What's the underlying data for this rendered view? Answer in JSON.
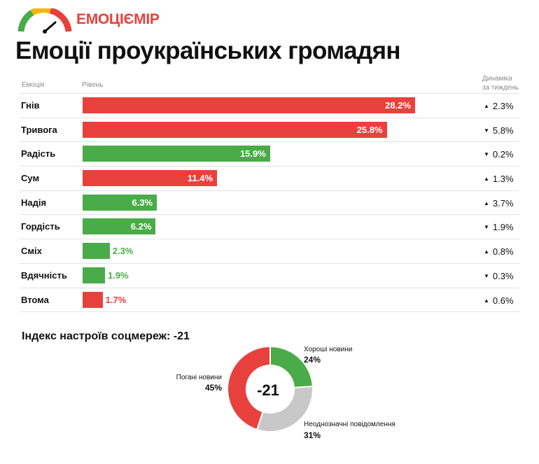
{
  "brand": "ЕМОЦІЄМІР",
  "title": "Емоції проукраїнських громадян",
  "headers": {
    "emotion": "Емоція",
    "level": "Рівень",
    "dynamics_line1": "Динаміка",
    "dynamics_line2": "за тиждень"
  },
  "colors": {
    "negative": "#e8413d",
    "positive": "#4aac48",
    "neutral": "#c8c8c8"
  },
  "chart_data": [
    {
      "type": "bar",
      "orientation": "horizontal",
      "categories": [
        "Гнів",
        "Тривога",
        "Радість",
        "Сум",
        "Надія",
        "Гордість",
        "Сміх",
        "Вдячність",
        "Втома"
      ],
      "values": [
        28.2,
        25.8,
        15.9,
        11.4,
        6.3,
        6.2,
        2.3,
        1.9,
        1.7
      ],
      "value_labels": [
        "28.2%",
        "25.8%",
        "15.9%",
        "11.4%",
        "6.3%",
        "6.2%",
        "2.3%",
        "1.9%",
        "1.7%"
      ],
      "sentiment": [
        "negative",
        "negative",
        "positive",
        "negative",
        "positive",
        "positive",
        "positive",
        "positive",
        "negative"
      ],
      "weekly_change": {
        "direction": [
          "up",
          "down",
          "down",
          "up",
          "up",
          "down",
          "up",
          "down",
          "up"
        ],
        "labels": [
          "2.3%",
          "5.8%",
          "0.2%",
          "1.3%",
          "3.7%",
          "1.9%",
          "0.8%",
          "0.3%",
          "0.6%"
        ]
      },
      "xlim": [
        0,
        28.2
      ]
    },
    {
      "type": "pie",
      "title": "Індекс настроїв соцмереж: -21",
      "center_label": "-21",
      "categories": [
        "Хороші новини",
        "Неоднозначні повідомлення",
        "Погані новини"
      ],
      "values": [
        24,
        31,
        45
      ],
      "value_labels": [
        "24%",
        "31%",
        "45%"
      ],
      "colors": [
        "#4aac48",
        "#c8c8c8",
        "#e8413d"
      ]
    }
  ]
}
